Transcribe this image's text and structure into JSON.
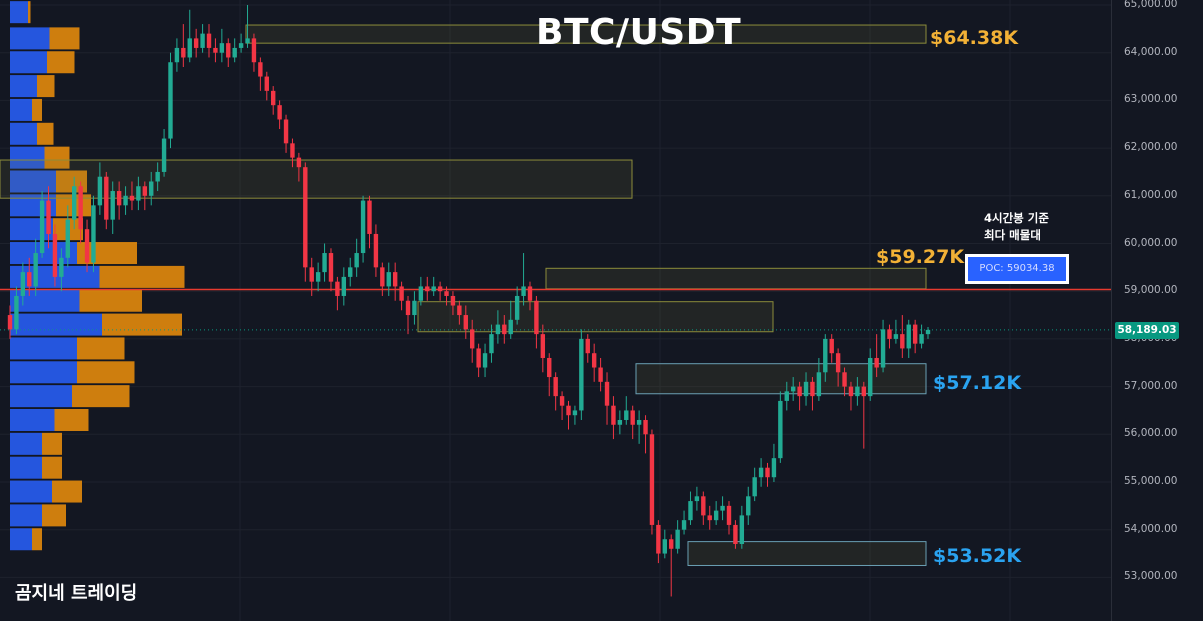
{
  "chart_data": {
    "type": "candlestick",
    "title": "BTC/USDT",
    "ylim": [
      52500,
      65000
    ],
    "y_ticks": [
      "65,000.00",
      "64,000.00",
      "63,000.00",
      "62,000.00",
      "61,000.00",
      "60,000.00",
      "59,000.00",
      "58,000.00",
      "57,000.00",
      "56,000.00",
      "55,000.00",
      "54,000.00",
      "53,000.00"
    ],
    "last_price": "58,189.03",
    "levels": [
      {
        "label": "$64.38K",
        "color": "gold",
        "zone": [
          64200,
          64580
        ]
      },
      {
        "label": "$59.27K",
        "color": "gold",
        "zone": [
          59050,
          59480
        ]
      },
      {
        "label": "$57.12K",
        "color": "blue",
        "zone": [
          56850,
          57480
        ]
      },
      {
        "label": "$53.52K",
        "color": "blue",
        "zone": [
          53250,
          53750
        ]
      }
    ],
    "other_zones": [
      {
        "zone": [
          60950,
          61750
        ]
      },
      {
        "zone": [
          58150,
          58780
        ]
      }
    ],
    "poc": {
      "label": "POC: 59034.38",
      "value": 59034.38
    },
    "annotation": [
      "4시간봉 기준",
      "최다 매물대"
    ],
    "volume_profile": [
      {
        "price": 64850,
        "a": 0.12,
        "b": 0.05
      },
      {
        "price": 64300,
        "a": 0.55,
        "b": 0.6
      },
      {
        "price": 63800,
        "a": 0.5,
        "b": 0.55
      },
      {
        "price": 63300,
        "a": 0.3,
        "b": 0.35
      },
      {
        "price": 62800,
        "a": 0.2,
        "b": 0.2
      },
      {
        "price": 62300,
        "a": 0.3,
        "b": 0.33
      },
      {
        "price": 61800,
        "a": 0.45,
        "b": 0.5
      },
      {
        "price": 61300,
        "a": 0.68,
        "b": 0.62
      },
      {
        "price": 60800,
        "a": 0.68,
        "b": 0.7
      },
      {
        "price": 60300,
        "a": 0.62,
        "b": 0.6
      },
      {
        "price": 59800,
        "a": 1.1,
        "b": 1.2
      },
      {
        "price": 59300,
        "a": 1.55,
        "b": 1.7
      },
      {
        "price": 58800,
        "a": 1.15,
        "b": 1.25
      },
      {
        "price": 58300,
        "a": 1.6,
        "b": 1.6
      },
      {
        "price": 57800,
        "a": 1.1,
        "b": 0.95
      },
      {
        "price": 57300,
        "a": 1.1,
        "b": 1.15
      },
      {
        "price": 56800,
        "a": 1.0,
        "b": 1.15
      },
      {
        "price": 56300,
        "a": 0.65,
        "b": 0.68
      },
      {
        "price": 55800,
        "a": 0.4,
        "b": 0.4
      },
      {
        "price": 55300,
        "a": 0.4,
        "b": 0.4
      },
      {
        "price": 54800,
        "a": 0.6,
        "b": 0.6
      },
      {
        "price": 54300,
        "a": 0.4,
        "b": 0.48
      },
      {
        "price": 53800,
        "a": 0.2,
        "b": 0.2
      }
    ],
    "candles": [
      [
        58500,
        58200,
        58700,
        58000
      ],
      [
        58200,
        58900,
        59100,
        58100
      ],
      [
        58900,
        59400,
        59600,
        58700
      ],
      [
        59400,
        59100,
        59700,
        58900
      ],
      [
        59100,
        59800,
        60100,
        58900
      ],
      [
        59800,
        60900,
        61100,
        59700
      ],
      [
        60900,
        60200,
        61200,
        59900
      ],
      [
        60200,
        59300,
        60400,
        59100
      ],
      [
        59300,
        59700,
        59900,
        59000
      ],
      [
        59700,
        60500,
        60800,
        59500
      ],
      [
        60500,
        61200,
        61400,
        60300
      ],
      [
        61200,
        60300,
        61300,
        60000
      ],
      [
        60300,
        59600,
        60500,
        59400
      ],
      [
        59600,
        60800,
        61000,
        59400
      ],
      [
        60800,
        61400,
        61700,
        60600
      ],
      [
        61400,
        60500,
        61500,
        60300
      ],
      [
        60500,
        61100,
        61300,
        60200
      ],
      [
        61100,
        60800,
        61300,
        60500
      ],
      [
        60800,
        61000,
        61200,
        60600
      ],
      [
        61000,
        60900,
        61300,
        60700
      ],
      [
        60900,
        61200,
        61400,
        60700
      ],
      [
        61200,
        61000,
        61300,
        60700
      ],
      [
        61000,
        61300,
        61500,
        60800
      ],
      [
        61300,
        61500,
        61700,
        61100
      ],
      [
        61500,
        62200,
        62400,
        61400
      ],
      [
        62200,
        63800,
        64000,
        62000
      ],
      [
        63800,
        64100,
        64300,
        63600
      ],
      [
        64100,
        63900,
        64600,
        63700
      ],
      [
        63900,
        64300,
        64900,
        63800
      ],
      [
        64300,
        64100,
        64500,
        63900
      ],
      [
        64100,
        64400,
        64600,
        64000
      ],
      [
        64400,
        64100,
        64600,
        63900
      ],
      [
        64100,
        64000,
        64300,
        63800
      ],
      [
        64000,
        64200,
        64500,
        63800
      ],
      [
        64200,
        63900,
        64300,
        63700
      ],
      [
        63900,
        64100,
        64300,
        63800
      ],
      [
        64100,
        64200,
        64400,
        64000
      ],
      [
        64200,
        64300,
        65000,
        64100
      ],
      [
        64300,
        63800,
        64400,
        63600
      ],
      [
        63800,
        63500,
        63900,
        63200
      ],
      [
        63500,
        63200,
        63600,
        63000
      ],
      [
        63200,
        62900,
        63300,
        62700
      ],
      [
        62900,
        62600,
        63000,
        62400
      ],
      [
        62600,
        62100,
        62700,
        61900
      ],
      [
        62100,
        61800,
        62200,
        61600
      ],
      [
        61800,
        61600,
        61900,
        61300
      ],
      [
        61600,
        59500,
        61700,
        59200
      ],
      [
        59500,
        59200,
        59700,
        58900
      ],
      [
        59200,
        59400,
        59600,
        59000
      ],
      [
        59400,
        59800,
        60000,
        59200
      ],
      [
        59800,
        59200,
        59900,
        59000
      ],
      [
        59200,
        58900,
        59300,
        58600
      ],
      [
        58900,
        59300,
        59500,
        58700
      ],
      [
        59300,
        59500,
        59700,
        59100
      ],
      [
        59500,
        59800,
        60100,
        59300
      ],
      [
        59800,
        60900,
        61000,
        59600
      ],
      [
        60900,
        60200,
        61000,
        59900
      ],
      [
        60200,
        59500,
        60400,
        59300
      ],
      [
        59500,
        59100,
        59600,
        58900
      ],
      [
        59100,
        59400,
        59600,
        58900
      ],
      [
        59400,
        59100,
        59600,
        58800
      ],
      [
        59100,
        58800,
        59200,
        58600
      ],
      [
        58800,
        58500,
        58900,
        58100
      ],
      [
        58500,
        58800,
        59000,
        58300
      ],
      [
        58800,
        59100,
        59300,
        58700
      ],
      [
        59100,
        59000,
        59300,
        58800
      ],
      [
        59000,
        59100,
        59300,
        58900
      ],
      [
        59100,
        59000,
        59200,
        58800
      ],
      [
        59000,
        58900,
        59100,
        58700
      ],
      [
        58900,
        58700,
        59000,
        58500
      ],
      [
        58700,
        58500,
        58800,
        58300
      ],
      [
        58500,
        58200,
        58700,
        58000
      ],
      [
        58200,
        57800,
        58400,
        57500
      ],
      [
        57800,
        57400,
        57900,
        57200
      ],
      [
        57400,
        57700,
        57900,
        57200
      ],
      [
        57700,
        58100,
        58300,
        57500
      ],
      [
        58100,
        58300,
        58600,
        57900
      ],
      [
        58300,
        58100,
        58500,
        57900
      ],
      [
        58100,
        58400,
        58800,
        58000
      ],
      [
        58400,
        58900,
        59100,
        58300
      ],
      [
        58900,
        59100,
        59800,
        58700
      ],
      [
        59100,
        58800,
        59200,
        58600
      ],
      [
        58800,
        58100,
        58900,
        57800
      ],
      [
        58100,
        57600,
        58300,
        57300
      ],
      [
        57600,
        57200,
        57700,
        56800
      ],
      [
        57200,
        56800,
        57300,
        56500
      ],
      [
        56800,
        56600,
        56900,
        56300
      ],
      [
        56600,
        56400,
        56700,
        56100
      ],
      [
        56400,
        56500,
        56600,
        56200
      ],
      [
        56500,
        58000,
        58200,
        56300
      ],
      [
        58000,
        57700,
        58100,
        57500
      ],
      [
        57700,
        57400,
        57900,
        57100
      ],
      [
        57400,
        57100,
        57600,
        56900
      ],
      [
        57100,
        56600,
        57300,
        56200
      ],
      [
        56600,
        56200,
        56800,
        55900
      ],
      [
        56200,
        56300,
        56500,
        56000
      ],
      [
        56300,
        56500,
        56800,
        56200
      ],
      [
        56500,
        56200,
        56600,
        55900
      ],
      [
        56200,
        56300,
        56500,
        55800
      ],
      [
        56300,
        56000,
        56400,
        55600
      ],
      [
        56000,
        54100,
        56100,
        53900
      ],
      [
        54100,
        53500,
        54200,
        53300
      ],
      [
        53500,
        53800,
        54000,
        53400
      ],
      [
        53800,
        53600,
        53900,
        52600
      ],
      [
        53600,
        54000,
        54200,
        53500
      ],
      [
        54000,
        54200,
        54400,
        53900
      ],
      [
        54200,
        54600,
        54800,
        54100
      ],
      [
        54600,
        54700,
        54900,
        54400
      ],
      [
        54700,
        54300,
        54800,
        54100
      ],
      [
        54300,
        54200,
        54500,
        54000
      ],
      [
        54200,
        54400,
        54600,
        54100
      ],
      [
        54400,
        54500,
        54700,
        54200
      ],
      [
        54500,
        54100,
        54600,
        53900
      ],
      [
        54100,
        53700,
        54200,
        53600
      ],
      [
        53700,
        54300,
        54500,
        53600
      ],
      [
        54300,
        54700,
        54900,
        54100
      ],
      [
        54700,
        55100,
        55300,
        54600
      ],
      [
        55100,
        55300,
        55500,
        54900
      ],
      [
        55300,
        55100,
        55400,
        54900
      ],
      [
        55100,
        55500,
        55800,
        55000
      ],
      [
        55500,
        56700,
        56900,
        55400
      ],
      [
        56700,
        56900,
        57100,
        56500
      ],
      [
        56900,
        57000,
        57200,
        56700
      ],
      [
        57000,
        56800,
        57100,
        56500
      ],
      [
        56800,
        57100,
        57300,
        56600
      ],
      [
        57100,
        56800,
        57200,
        56500
      ],
      [
        56800,
        57300,
        57600,
        56700
      ],
      [
        57300,
        58000,
        58100,
        57100
      ],
      [
        58000,
        57700,
        58100,
        57500
      ],
      [
        57700,
        57300,
        57800,
        57000
      ],
      [
        57300,
        57000,
        57400,
        56800
      ],
      [
        57000,
        56800,
        57100,
        56500
      ],
      [
        56800,
        57000,
        57200,
        56600
      ],
      [
        57000,
        56800,
        57100,
        55700
      ],
      [
        56800,
        57600,
        57800,
        56700
      ],
      [
        57600,
        57400,
        58100,
        57200
      ],
      [
        57400,
        58200,
        58400,
        57300
      ],
      [
        58200,
        58000,
        58300,
        57800
      ],
      [
        58000,
        58100,
        58400,
        57900
      ],
      [
        58100,
        57800,
        58500,
        57600
      ],
      [
        57800,
        58300,
        58400,
        57600
      ],
      [
        58300,
        57900,
        58400,
        57700
      ],
      [
        57900,
        58100,
        58300,
        57800
      ],
      [
        58100,
        58189,
        58250,
        58000
      ]
    ]
  },
  "brand": "곰지네 트레이딩"
}
